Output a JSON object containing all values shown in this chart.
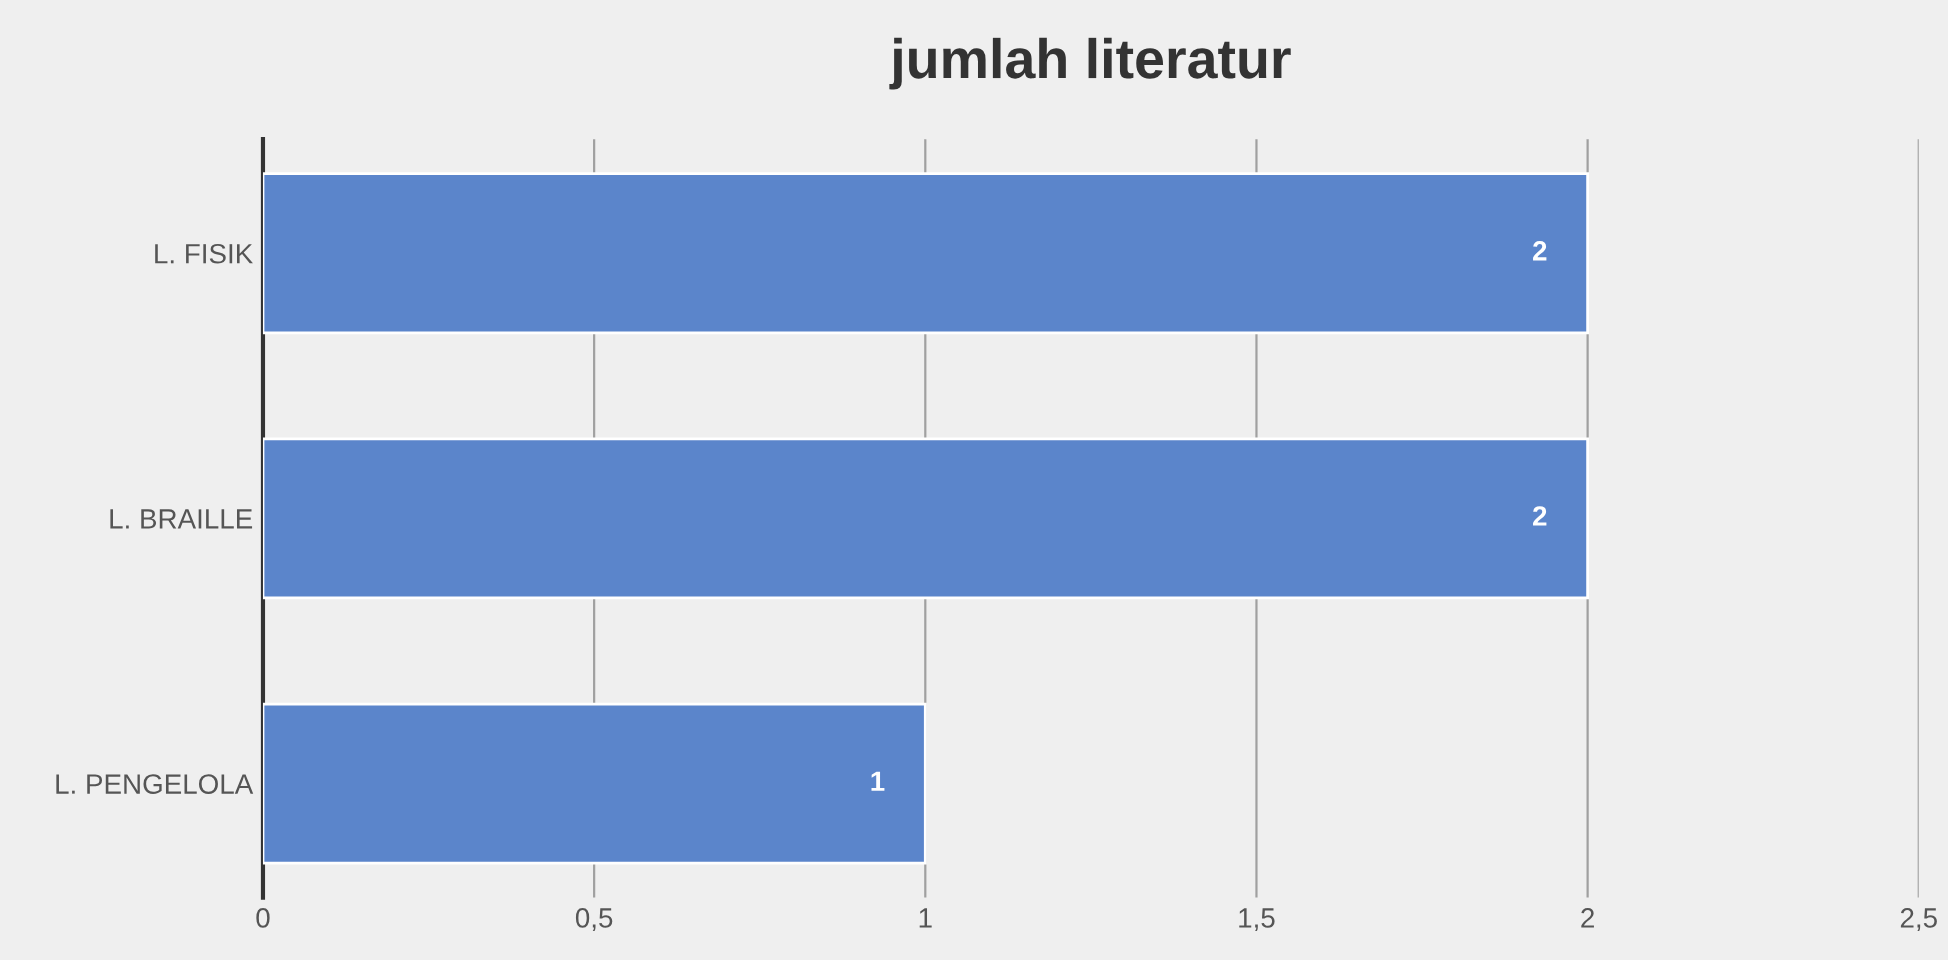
{
  "chart_data": {
    "type": "bar",
    "orientation": "horizontal",
    "title": "jumlah literatur",
    "categories": [
      "L. FISIK",
      "L. BRAILLE",
      "L. PENGELOLA"
    ],
    "values": [
      2,
      2,
      1
    ],
    "color": "#5b85cb",
    "xlim": [
      0,
      2.5
    ],
    "xticks": [
      0,
      {
        "value": 0.5,
        "label": "0,5"
      },
      1,
      {
        "value": 1.5,
        "label": "1,5"
      },
      2,
      {
        "value": 2.5,
        "label": "2,5"
      }
    ],
    "grid": "x",
    "data_labels": true
  }
}
